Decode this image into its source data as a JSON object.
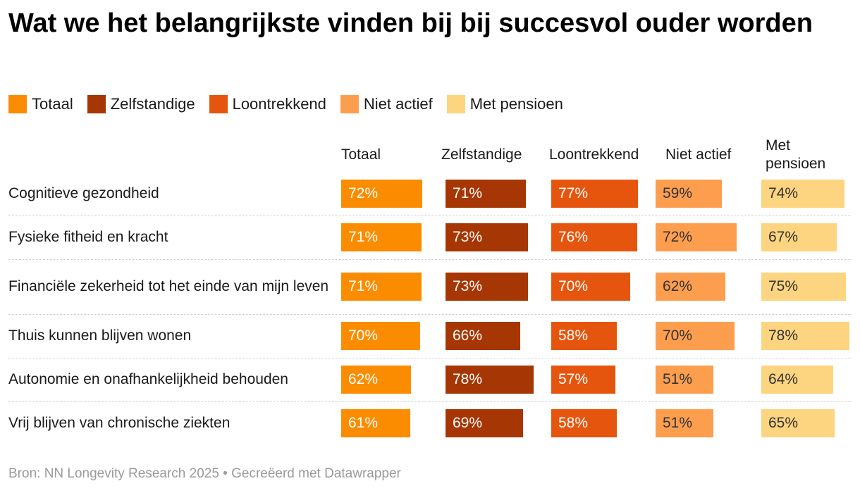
{
  "title": "Wat we het belangrijkste vinden bij bij succesvol ouder worden",
  "footer": "Bron: NN Longevity Research 2025 • Gecreëerd met Datawrapper",
  "chart_data": {
    "type": "table",
    "title": "Wat we het belangrijkste vinden bij bij succesvol ouder worden",
    "value_suffix": "%",
    "categories": [
      "Cognitieve gezondheid",
      "Fysieke fitheid en kracht",
      "Financiële zekerheid tot het einde van mijn leven",
      "Thuis kunnen blijven wonen",
      "Autonomie en onafhankelijkheid behouden",
      "Vrij blijven van chronische ziekten"
    ],
    "series": [
      {
        "name": "Totaal",
        "header": "Totaal",
        "color": "#fb8c00",
        "text_color": "#ffffff",
        "values": [
          72,
          71,
          71,
          70,
          62,
          61
        ]
      },
      {
        "name": "Zelfstandige",
        "header": "Zelfstandige",
        "color": "#a63603",
        "text_color": "#ffffff",
        "values": [
          71,
          73,
          73,
          66,
          78,
          69
        ]
      },
      {
        "name": "Loontrekkend",
        "header": "Loontrekkend",
        "color": "#e6550d",
        "text_color": "#ffffff",
        "values": [
          77,
          76,
          70,
          58,
          57,
          58
        ]
      },
      {
        "name": "Niet actief",
        "header": "Niet actief",
        "color": "#fd9e4f",
        "text_color": "#333333",
        "values": [
          59,
          72,
          62,
          70,
          51,
          51
        ]
      },
      {
        "name": "Met pensioen",
        "header": "Met pensioen",
        "color": "#fdd47f",
        "text_color": "#333333",
        "values": [
          74,
          67,
          75,
          78,
          64,
          65
        ]
      }
    ]
  }
}
